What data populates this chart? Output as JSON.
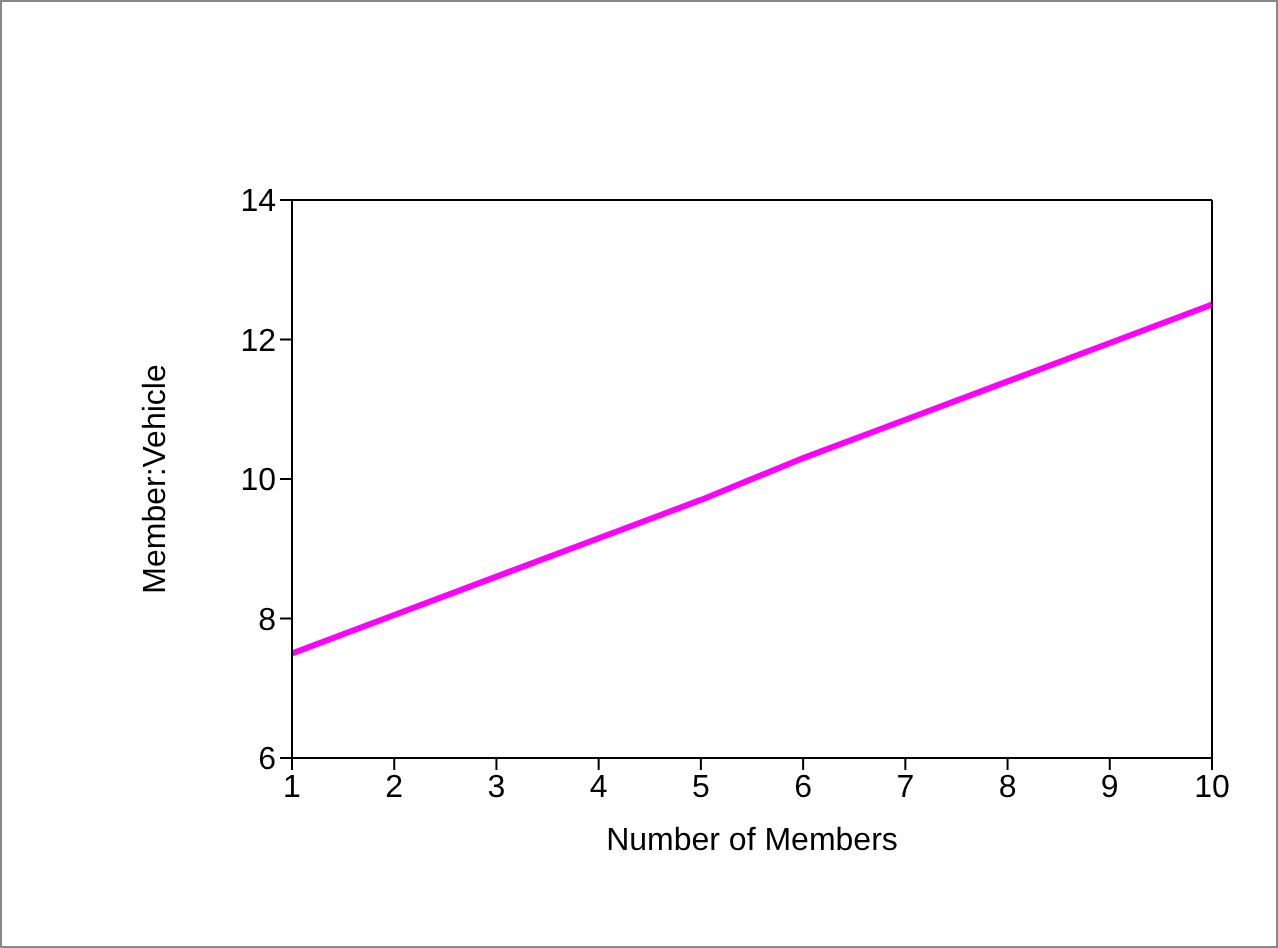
{
  "chart_data": {
    "type": "line",
    "xlabel": "Number of Members",
    "ylabel": "Member:Vehicle",
    "x": [
      1,
      2,
      3,
      4,
      5,
      6,
      7,
      8,
      9,
      10
    ],
    "series": [
      {
        "color": "#ff00ff",
        "values": [
          7.5,
          8.05,
          8.6,
          9.15,
          9.7,
          10.3,
          10.85,
          11.4,
          11.95,
          12.5
        ]
      }
    ],
    "xlim": [
      1,
      10
    ],
    "xticks": [
      1,
      2,
      3,
      4,
      5,
      6,
      7,
      8,
      9,
      10
    ],
    "ylim": [
      6,
      14
    ],
    "yticks": [
      6,
      8,
      10,
      12,
      14
    ],
    "grid": false,
    "legend": false,
    "marker": "none",
    "line_style": "solid"
  }
}
